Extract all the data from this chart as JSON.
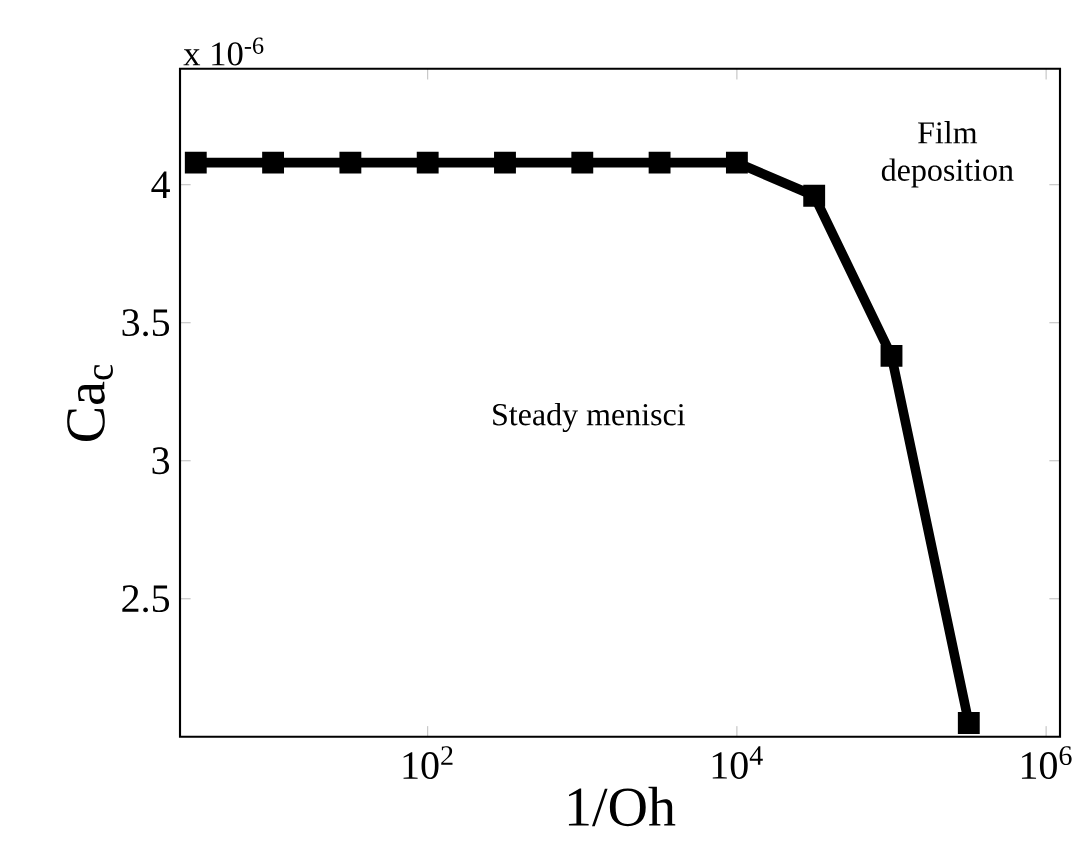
{
  "chart_data": {
    "type": "line",
    "xlabel": "1/Oh",
    "ylabel": "Ca$_{c}$",
    "x": [
      3.162,
      10,
      31.62,
      100,
      316.2,
      1000,
      3162,
      10000,
      31620,
      100000,
      316200
    ],
    "series": [
      {
        "color": "#000000",
        "values": [
          4.08,
          4.08,
          4.08,
          4.08,
          4.08,
          4.08,
          4.08,
          4.08,
          3.96,
          3.38,
          2.05
        ]
      }
    ],
    "log": "x",
    "xlim": [
      2.5,
      1230000
    ],
    "ylim": [
      2.0,
      4.42
    ],
    "xticks": [
      {
        "value": 100,
        "label": "10$^{2}$"
      },
      {
        "value": 10000,
        "label": "10$^{4}$"
      },
      {
        "value": 1000000,
        "label": "10$^{6}$"
      }
    ],
    "yticks": [
      2.5,
      3,
      3.5,
      4
    ],
    "marker": "square",
    "line_style": "solid",
    "grid": false,
    "annotations": [
      "x 10$^{-6}$",
      "Film deposition",
      "Steady menisci"
    ]
  }
}
